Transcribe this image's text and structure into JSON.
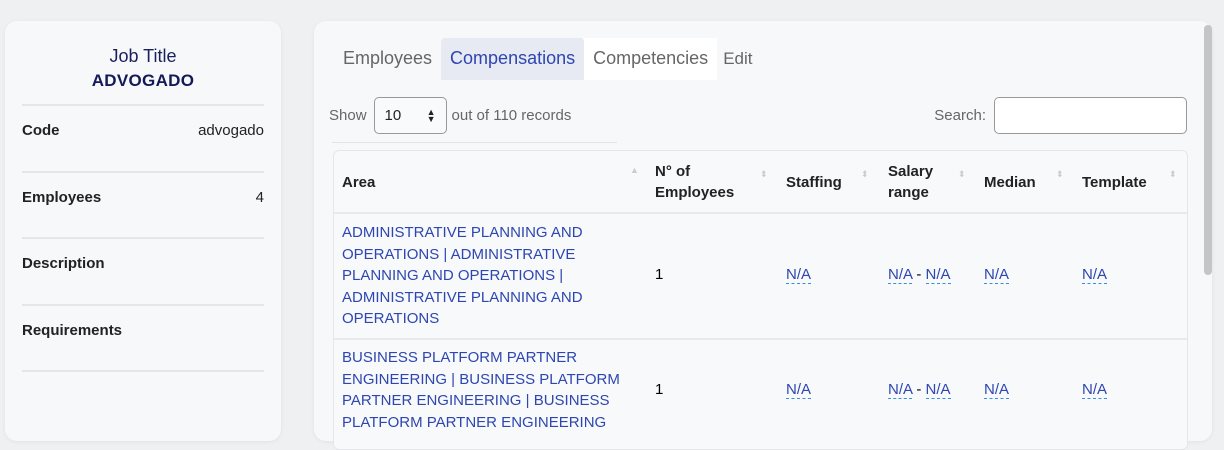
{
  "job": {
    "title_label": "Job Title",
    "title_value": "ADVOGADO",
    "fields": [
      {
        "label": "Code",
        "value": "advogado"
      },
      {
        "label": "Employees",
        "value": "4"
      },
      {
        "label": "Description",
        "value": ""
      },
      {
        "label": "Requirements",
        "value": ""
      }
    ]
  },
  "tabs": [
    "Employees",
    "Compensations",
    "Competencies",
    "Edit"
  ],
  "active_tab": "Compensations",
  "controls": {
    "show_label": "Show",
    "page_size": "10",
    "records_text": "out of 110 records",
    "search_label": "Search:",
    "search_value": ""
  },
  "table": {
    "headers": [
      "Area",
      "N° of Employees",
      "Staffing",
      "Salary range",
      "Median",
      "Template"
    ],
    "rows": [
      {
        "area": "ADMINISTRATIVE PLANNING AND OPERATIONS | ADMINISTRATIVE PLANNING AND OPERATIONS | ADMINISTRATIVE PLANNING AND OPERATIONS",
        "employees": "1",
        "staffing": "N/A",
        "salary_min": "N/A",
        "salary_sep": "-",
        "salary_max": "N/A",
        "median": "N/A",
        "template": "N/A"
      },
      {
        "area": "BUSINESS PLATFORM PARTNER ENGINEERING | BUSINESS PLATFORM PARTNER ENGINEERING | BUSINESS PLATFORM PARTNER ENGINEERING",
        "employees": "1",
        "staffing": "N/A",
        "salary_min": "N/A",
        "salary_sep": "-",
        "salary_max": "N/A",
        "median": "N/A",
        "template": "N/A"
      }
    ]
  }
}
